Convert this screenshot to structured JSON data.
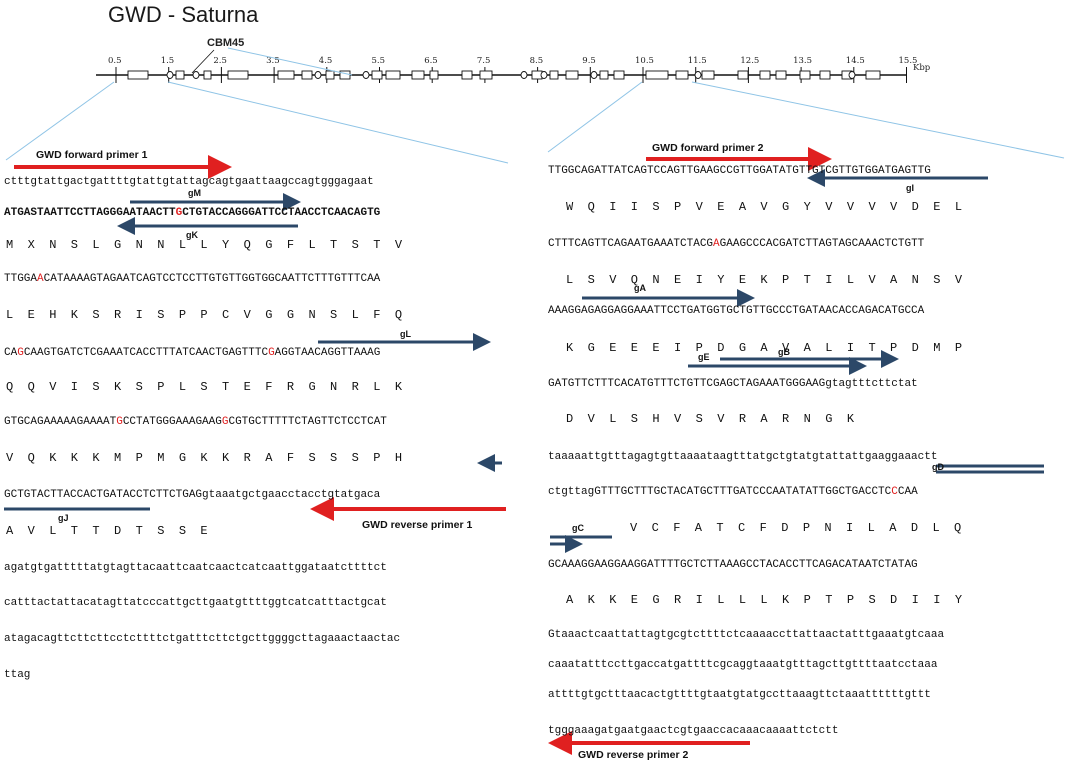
{
  "title": "GWD - Saturna",
  "cbm_label": "CBM45",
  "kbp_label": "Kbp",
  "ticks": [
    "0.5",
    "1.5",
    "2.5",
    "3.5",
    "4.5",
    "5.5",
    "6.5",
    "7.5",
    "8.5",
    "9.5",
    "10.5",
    "11.5",
    "12.5",
    "13.5",
    "14.5",
    "15.5"
  ],
  "colors": {
    "primer": "#e02020",
    "guide": "#2c4868",
    "zoom": "#8fc4e6",
    "mutation": "#e02020"
  },
  "primers": {
    "fwd1": "GWD forward primer 1",
    "rev1": "GWD reverse primer 1",
    "fwd2": "GWD forward primer 2",
    "rev2": "GWD reverse primer 2"
  },
  "guides": {
    "gM": "gM",
    "gK": "gK",
    "gL": "gL",
    "gJ": "gJ",
    "gI": "gI",
    "gA": "gA",
    "gE": "gE",
    "gB": "gB",
    "gD": "gD",
    "gC": "gC"
  },
  "left": {
    "s1": "ctttgtattgactgattttgtattgtattagcagtgaattaagccagtgggagaat",
    "s2a": "ATGASTAATTCCTTAGGGAATAACTT",
    "s2m": "G",
    "s2b": "CTGTACCAGGGATTCCTAACCTCAACAGTG",
    "aa2": "M  X  N  S  L  G  N  N  L  L  Y  Q  G  F  L  T  S  T  V",
    "s3a": "TTGGA",
    "s3m": "A",
    "s3b": "CATAAAAGTAGAATCAGTCCTCCTTGTGTTGGTGGCAATTCTTTGTTTCAA",
    "aa3": "L  E  H  K  S  R  I  S  P  P  C  V  G  G  N  S  L  F  Q",
    "s4a": "CA",
    "s4m": "G",
    "s4b": "CAAGTGATCTCGAAATCACCTTTATCAACTGAGTTTC",
    "s4m2": "G",
    "s4c": "AGGTAACAGGTTAAAG",
    "aa4": "Q  Q  V  I  S  K  S  P  L  S  T  E  F  R  G  N  R  L  K",
    "s5a": "GTGCAGAAAAAGAAAAT",
    "s5m": "G",
    "s5b": "CCTATGGGAAAGAAG",
    "s5m2": "G",
    "s5c": "CGTGCTTTTTCTAGTTCTCCTCAT",
    "aa5": "V  Q  K  K  K  M  P  M  G  K  K  R  A  F  S  S  S  P  H",
    "s6": "GCTGTACTTACCACTGATACCTCTTCTGAGgtaaatgctgaacctacctgtatgaca",
    "aa6": "A  V  L  T  T  D  T  S  S  E",
    "s7": "agatgtgatttttatgtagttacaattcaatcaactcatcaattggataatcttttct",
    "s8": "catttactattacatagttatcccattgcttgaatgttttggtcatcatttactgcat",
    "s9": "atagacagttcttcttcctcttttctgatttcttctgcttggggcttagaaactaactac",
    "s10": "ttag"
  },
  "right": {
    "s1": "TTGGCAGATTATCAGTCCAGTTGAAGCCGTTGGATATGTTGTCGTTGTGGATGAGTTG",
    "aa1": "W  Q  I  I  S  P  V  E  A  V  G  Y  V  V  V  V  D  E  L",
    "s2a": "CTTTCAGTTCAGAATGAAATCTACG",
    "s2m": "A",
    "s2b": "GAAGCCCACGATCTTAGTAGCAAACTCTGTT",
    "aa2": "L  S  V  Q  N  E  I  Y  E  K  P  T  I  L  V  A  N  S  V",
    "s3": "AAAGGAGAGGAGGAAATTCCTGATGGTGCTGTTGCCCTGATAACACCAGACATGCCA",
    "aa3": "K  G  E  E  E  I  P  D  G  A  V  A  L  I  T  P  D  M  P",
    "s4": "GATGTTCTTTCACATGTTTCTGTTCGAGCTAGAAATGGGAAGgtagtttcttctat",
    "aa4": "D  V  L  S  H  V  S  V  R  A  R  N  G  K",
    "s5": "taaaaattgtttagagtgttaaaataagtttatgctgtatgtattattgaaggaaactt",
    "s6a": "ctgttagGTTTGCTTTGCTACATGCTTTGATCCCAATATATTGGCTGACCTC",
    "s6m": "C",
    "s6b": "CAA",
    "aa6": "V  C  F  A  T  C  F  D  P  N  I  L  A  D  L  Q",
    "s7": "GCAAAGGAAGGAAGGATTTTGCTCTTAAAGCCTACACCTTCAGACATAATCTATAG",
    "aa7": "A  K  K  E  G  R  I  L  L  L  K  P  T  P  S  D  I  I  Y",
    "s8": "Gtaaactcaattattagtgcgtcttttctcaaaaccttattaactatttgaaatgtcaaa",
    "s9": "caaatatttccttgaccatgattttcgcaggtaaatgtttagcttgttttaatcctaaa",
    "s10": "attttgtgctttaacactgttttgtaatgtatgccttaaagttctaaattttttgttt",
    "s11": "tgggaaagatgaatgaactcgtgaaccacaaacaaaattctctt"
  }
}
